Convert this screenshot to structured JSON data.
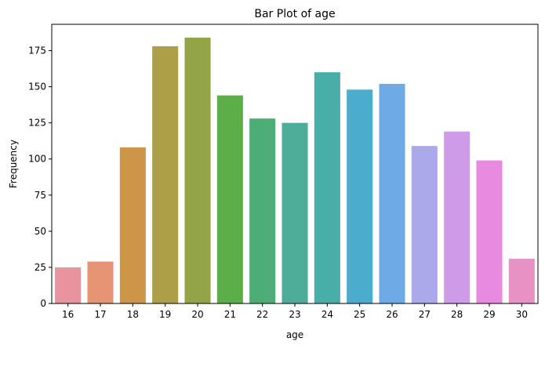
{
  "chart_data": {
    "type": "bar",
    "title": "Bar Plot of age",
    "xlabel": "age",
    "ylabel": "Frequency",
    "categories": [
      "16",
      "17",
      "18",
      "19",
      "20",
      "21",
      "22",
      "23",
      "24",
      "25",
      "26",
      "27",
      "28",
      "29",
      "30"
    ],
    "values": [
      25,
      29,
      108,
      178,
      184,
      144,
      128,
      125,
      160,
      148,
      152,
      109,
      119,
      99,
      31
    ],
    "colors": [
      "#e8939e",
      "#e69473",
      "#cc9547",
      "#ad9f47",
      "#92a446",
      "#5cae49",
      "#4cad77",
      "#4ead98",
      "#49ada8",
      "#4caccd",
      "#6eaae6",
      "#aca9eb",
      "#cd9be7",
      "#e78ae0",
      "#e891c4"
    ],
    "ylim": [
      0,
      193.2
    ],
    "yticks": [
      0,
      25,
      50,
      75,
      100,
      125,
      150,
      175
    ],
    "grid": false,
    "legend": "none"
  }
}
